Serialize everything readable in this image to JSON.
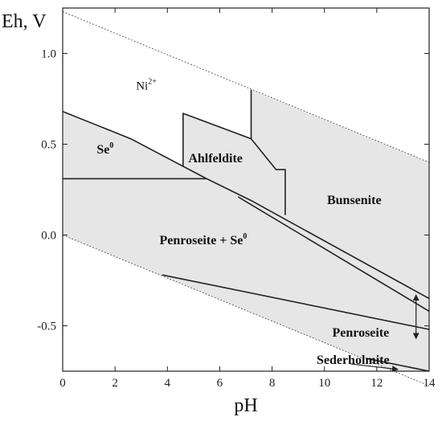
{
  "chart_data": {
    "type": "area",
    "title": "",
    "xlabel": "pH",
    "ylabel": "Eh, V",
    "xlim": [
      0,
      14
    ],
    "ylim": [
      -0.75,
      1.25
    ],
    "x_ticks": [
      0,
      2,
      4,
      6,
      8,
      10,
      12,
      14
    ],
    "y_ticks": [
      {
        "value": 1.0,
        "label": "1.0"
      },
      {
        "value": 0.5,
        "label": "0.5"
      },
      {
        "value": 0.0,
        "label": "0.0"
      },
      {
        "value": -0.5,
        "label": "-0.5"
      }
    ],
    "grid": false,
    "water_stability_lines": [
      {
        "points": [
          [
            0,
            1.23
          ],
          [
            14,
            0.4
          ]
        ]
      },
      {
        "points": [
          [
            0,
            0.0
          ],
          [
            14,
            -0.83
          ]
        ]
      }
    ],
    "fields": [
      {
        "label": "Ni",
        "sup": "2+",
        "bold": false,
        "at": [
          2.8,
          0.8
        ],
        "polygon": []
      },
      {
        "label": "Se",
        "sup": "0",
        "bold": true,
        "at": [
          1.3,
          0.45
        ],
        "polygon": [
          [
            0,
            0.68
          ],
          [
            2.6,
            0.53
          ],
          [
            5.5,
            0.31
          ],
          [
            0,
            0.31
          ]
        ]
      },
      {
        "label": "Ahlfeldite",
        "bold": true,
        "at": [
          4.8,
          0.4
        ],
        "polygon": [
          [
            4.6,
            0.67
          ],
          [
            7.2,
            0.53
          ],
          [
            7.2,
            0.8
          ],
          [
            7.2,
            0.53
          ],
          [
            8.15,
            0.36
          ],
          [
            8.5,
            0.36
          ],
          [
            8.5,
            0.11
          ],
          [
            6.7,
            0.21
          ],
          [
            4.6,
            0.38
          ]
        ]
      },
      {
        "label": "Bunsenite",
        "bold": true,
        "at": [
          10.1,
          0.17
        ],
        "polygon": [
          [
            7.2,
            0.8
          ],
          [
            14,
            0.4
          ],
          [
            14,
            -0.35
          ],
          [
            7.2,
            0.19
          ]
        ]
      },
      {
        "label": "Penroseite + Se",
        "sup": "0",
        "bold": true,
        "at": [
          3.7,
          -0.05
        ],
        "polygon": []
      },
      {
        "label": "Penroseite",
        "bold": true,
        "at": [
          10.3,
          -0.56
        ],
        "polygon": []
      },
      {
        "label": "Sederholmite",
        "bold": true,
        "at": [
          9.7,
          -0.71
        ],
        "polygon": []
      }
    ],
    "boundary_lines": [
      {
        "points": [
          [
            0,
            0.68
          ],
          [
            2.6,
            0.53
          ],
          [
            5.5,
            0.31
          ],
          [
            7.2,
            0.19
          ],
          [
            14,
            -0.35
          ]
        ]
      },
      {
        "points": [
          [
            0,
            0.31
          ],
          [
            5.5,
            0.31
          ]
        ]
      },
      {
        "points": [
          [
            4.6,
            0.38
          ],
          [
            4.6,
            0.67
          ],
          [
            7.2,
            0.53
          ],
          [
            7.2,
            0.8
          ]
        ]
      },
      {
        "points": [
          [
            7.2,
            0.53
          ],
          [
            8.15,
            0.36
          ],
          [
            8.5,
            0.36
          ],
          [
            8.5,
            0.11
          ]
        ]
      },
      {
        "points": [
          [
            6.7,
            0.21
          ],
          [
            14,
            -0.42
          ]
        ]
      },
      {
        "points": [
          [
            3.8,
            -0.22
          ],
          [
            14,
            -0.52
          ]
        ]
      },
      {
        "points": [
          [
            11.6,
            -0.68
          ],
          [
            14,
            -0.75
          ]
        ]
      }
    ],
    "annotations": [
      {
        "kind": "double-arrow",
        "from": [
          13.5,
          -0.33
        ],
        "to": [
          13.5,
          -0.57
        ]
      },
      {
        "kind": "arrow",
        "from": [
          11.0,
          -0.71
        ],
        "to": [
          12.8,
          -0.74
        ]
      }
    ]
  }
}
